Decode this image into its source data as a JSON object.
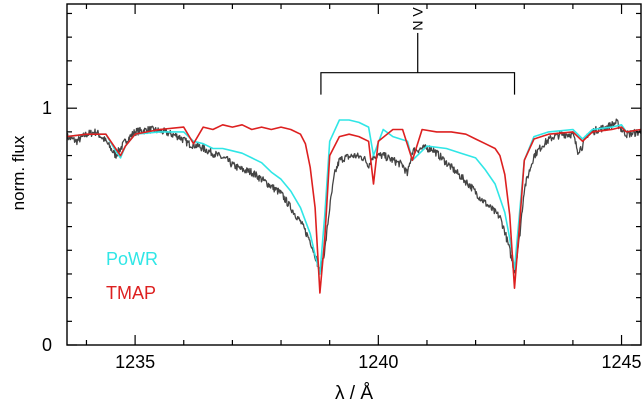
{
  "chart_data": {
    "type": "line",
    "title": "",
    "xlabel": "λ / Å",
    "ylabel": "norm. flux",
    "xlim": [
      1233.6,
      1245.4
    ],
    "ylim": [
      0,
      1.44
    ],
    "x_ticks": [
      1235,
      1240,
      1245
    ],
    "x_tick_labels": [
      "1235",
      "1240",
      "1245"
    ],
    "y_ticks": [
      0,
      1
    ],
    "y_tick_labels": [
      "0",
      "1"
    ],
    "grid": false,
    "legend_placement": "bottom-left",
    "annotations": [
      {
        "text": "N V",
        "lines": [
          1238.82,
          1242.8
        ],
        "y_bracket": 1.15,
        "y_label": 1.36
      }
    ],
    "series": [
      {
        "name": "",
        "color": "#444444",
        "noise": 0.016,
        "x": [
          1233.6,
          1233.8,
          1234.0,
          1234.2,
          1234.4,
          1234.6,
          1234.7,
          1234.8,
          1235.0,
          1235.3,
          1235.6,
          1235.9,
          1236.1,
          1236.3,
          1236.5,
          1236.7,
          1236.9,
          1237.0,
          1237.2,
          1237.4,
          1237.6,
          1237.8,
          1238.0,
          1238.2,
          1238.4,
          1238.6,
          1238.7,
          1238.8,
          1238.9,
          1239.0,
          1239.1,
          1239.2,
          1239.3,
          1239.5,
          1239.7,
          1239.8,
          1239.9,
          1240.1,
          1240.3,
          1240.5,
          1240.6,
          1240.7,
          1240.9,
          1241.1,
          1241.3,
          1241.5,
          1241.7,
          1241.9,
          1242.1,
          1242.3,
          1242.5,
          1242.6,
          1242.7,
          1242.8,
          1242.9,
          1243.0,
          1243.2,
          1243.4,
          1243.6,
          1243.8,
          1244.0,
          1244.1,
          1244.2,
          1244.3,
          1244.5,
          1244.7,
          1244.9,
          1245.0,
          1245.1,
          1245.4
        ],
        "y": [
          0.88,
          0.86,
          0.89,
          0.9,
          0.86,
          0.8,
          0.83,
          0.86,
          0.9,
          0.91,
          0.9,
          0.88,
          0.85,
          0.84,
          0.82,
          0.8,
          0.78,
          0.76,
          0.74,
          0.73,
          0.7,
          0.67,
          0.64,
          0.58,
          0.52,
          0.44,
          0.38,
          0.31,
          0.4,
          0.58,
          0.72,
          0.78,
          0.79,
          0.8,
          0.79,
          0.76,
          0.8,
          0.8,
          0.78,
          0.76,
          0.72,
          0.82,
          0.83,
          0.83,
          0.79,
          0.75,
          0.71,
          0.67,
          0.62,
          0.58,
          0.54,
          0.48,
          0.4,
          0.31,
          0.45,
          0.66,
          0.8,
          0.85,
          0.88,
          0.89,
          0.89,
          0.82,
          0.84,
          0.89,
          0.91,
          0.92,
          0.94,
          0.91,
          0.89,
          0.9
        ]
      },
      {
        "name": "PoWR",
        "color": "#30e6e6",
        "noise": 0,
        "x": [
          1233.6,
          1234.0,
          1234.4,
          1234.6,
          1234.7,
          1234.8,
          1235.0,
          1235.5,
          1236.0,
          1236.2,
          1236.4,
          1236.6,
          1236.8,
          1237.0,
          1237.2,
          1237.4,
          1237.6,
          1237.8,
          1238.0,
          1238.2,
          1238.4,
          1238.6,
          1238.7,
          1238.8,
          1238.9,
          1239.0,
          1239.2,
          1239.4,
          1239.6,
          1239.8,
          1239.9,
          1240.1,
          1240.3,
          1240.6,
          1240.7,
          1241.0,
          1241.4,
          1241.7,
          1242.0,
          1242.2,
          1242.4,
          1242.6,
          1242.7,
          1242.8,
          1242.9,
          1243.0,
          1243.2,
          1243.5,
          1244.0,
          1244.2,
          1244.4,
          1244.8,
          1245.0,
          1245.1,
          1245.4
        ],
        "y": [
          0.88,
          0.89,
          0.89,
          0.82,
          0.79,
          0.84,
          0.89,
          0.9,
          0.9,
          0.86,
          0.85,
          0.83,
          0.83,
          0.82,
          0.81,
          0.79,
          0.77,
          0.73,
          0.7,
          0.65,
          0.58,
          0.47,
          0.38,
          0.3,
          0.55,
          0.86,
          0.95,
          0.95,
          0.94,
          0.92,
          0.8,
          0.91,
          0.88,
          0.86,
          0.78,
          0.84,
          0.83,
          0.81,
          0.79,
          0.74,
          0.68,
          0.56,
          0.45,
          0.32,
          0.55,
          0.78,
          0.88,
          0.9,
          0.91,
          0.87,
          0.91,
          0.92,
          0.93,
          0.9,
          0.91
        ]
      },
      {
        "name": "TMAP",
        "color": "#dd2020",
        "noise": 0,
        "x": [
          1233.6,
          1234.0,
          1234.4,
          1234.6,
          1234.7,
          1234.8,
          1235.0,
          1235.5,
          1236.0,
          1236.2,
          1236.4,
          1236.6,
          1236.8,
          1237.0,
          1237.2,
          1237.4,
          1237.6,
          1237.8,
          1238.0,
          1238.2,
          1238.4,
          1238.5,
          1238.6,
          1238.7,
          1238.8,
          1238.9,
          1239.0,
          1239.2,
          1239.4,
          1239.6,
          1239.8,
          1239.9,
          1240.0,
          1240.3,
          1240.5,
          1240.7,
          1240.9,
          1241.2,
          1241.5,
          1241.8,
          1242.0,
          1242.2,
          1242.4,
          1242.5,
          1242.6,
          1242.7,
          1242.8,
          1242.9,
          1243.0,
          1243.2,
          1243.5,
          1244.0,
          1244.2,
          1244.4,
          1244.8,
          1245.0,
          1245.1,
          1245.4
        ],
        "y": [
          0.88,
          0.89,
          0.89,
          0.83,
          0.8,
          0.84,
          0.89,
          0.91,
          0.92,
          0.85,
          0.92,
          0.91,
          0.93,
          0.92,
          0.93,
          0.91,
          0.92,
          0.91,
          0.92,
          0.91,
          0.89,
          0.85,
          0.75,
          0.58,
          0.22,
          0.45,
          0.8,
          0.88,
          0.89,
          0.88,
          0.86,
          0.68,
          0.86,
          0.91,
          0.91,
          0.78,
          0.91,
          0.9,
          0.9,
          0.89,
          0.87,
          0.85,
          0.83,
          0.8,
          0.72,
          0.55,
          0.24,
          0.5,
          0.78,
          0.87,
          0.89,
          0.9,
          0.86,
          0.9,
          0.91,
          0.92,
          0.9,
          0.91
        ]
      }
    ]
  }
}
